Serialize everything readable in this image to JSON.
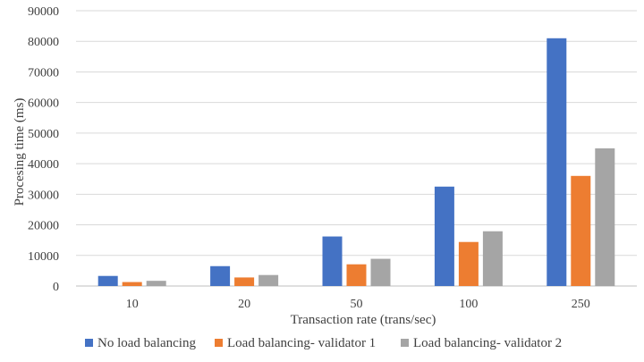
{
  "chart_data": {
    "type": "bar",
    "title": "",
    "xlabel": "Transaction rate (trans/sec)",
    "ylabel": "Procesing time (ms)",
    "ylim": [
      0,
      90000
    ],
    "yticks": [
      0,
      10000,
      20000,
      30000,
      40000,
      50000,
      60000,
      70000,
      80000,
      90000
    ],
    "grid": true,
    "legend_position": "bottom",
    "categories": [
      "10",
      "20",
      "50",
      "100",
      "250"
    ],
    "series": [
      {
        "name": "No load balancing",
        "color": "#4472C4",
        "values": [
          3300,
          6500,
          16200,
          32500,
          81000
        ]
      },
      {
        "name": "Load balancing- validator 1",
        "color": "#ED7D31",
        "values": [
          1300,
          2800,
          7100,
          14400,
          36000
        ]
      },
      {
        "name": "Load balancing- validator 2",
        "color": "#A5A5A5",
        "values": [
          1700,
          3600,
          8900,
          17900,
          45000
        ]
      }
    ]
  }
}
